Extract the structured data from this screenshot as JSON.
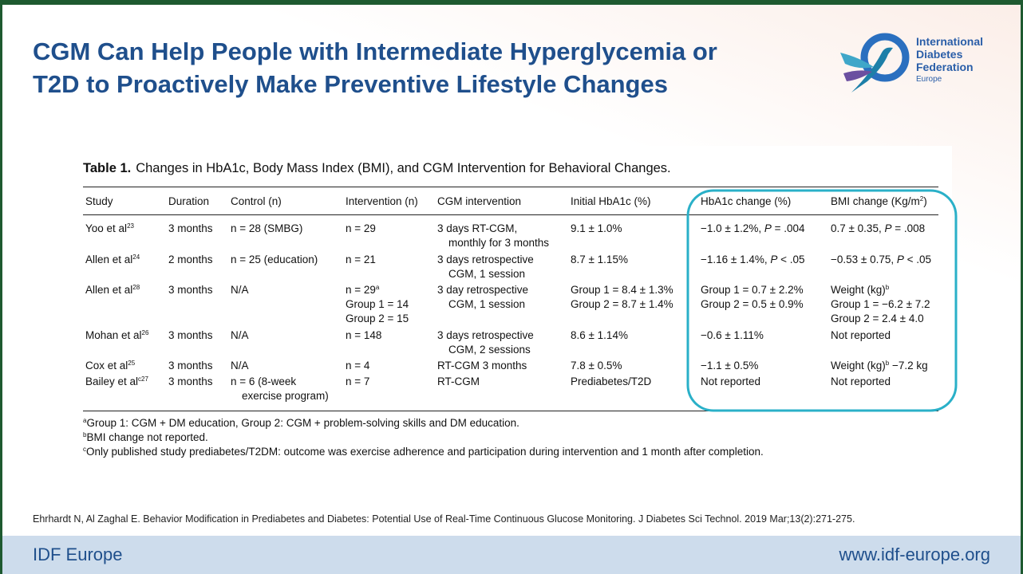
{
  "header": {
    "title": [
      "CGM Can Help People with Intermediate Hyperglycemia or",
      "T2D to Proactively Make Preventive Lifestyle Changes"
    ],
    "logo": [
      "International",
      "Diabetes",
      "Federation",
      "Europe"
    ]
  },
  "table": {
    "caption_label": "Table 1.",
    "caption": "Changes in HbA1c, Body Mass Index (BMI), and CGM Intervention for Behavioral Changes.",
    "columns": [
      [
        "Study"
      ],
      [
        "Duration"
      ],
      [
        "Control (n)"
      ],
      [
        "Intervention (n)"
      ],
      [
        "CGM intervention"
      ],
      [
        "Initial HbA1c (%)"
      ],
      [
        "HbA1c change (%)"
      ],
      [
        [
          "BMI change (Kg/m",
          {
            "sup": "2"
          },
          ")"
        ]
      ]
    ],
    "rows": [
      [
        [
          [
            "Yoo et al",
            {
              "sup": "23"
            }
          ]
        ],
        [
          "3 months"
        ],
        [
          "n = 28 (SMBG)"
        ],
        [
          "n = 29"
        ],
        [
          "3 days RT-CGM,",
          "monthly for 3 months"
        ],
        [
          "9.1 ± 1.0%"
        ],
        [
          [
            "−1.0 ± 1.2%, ",
            {
              "i": "P"
            },
            " = .004"
          ]
        ],
        [
          [
            "0.7 ± 0.35, ",
            {
              "i": "P"
            },
            " = .008"
          ]
        ]
      ],
      [
        [
          [
            "Allen et al",
            {
              "sup": "24"
            }
          ]
        ],
        [
          "2 months"
        ],
        [
          "n = 25 (education)"
        ],
        [
          "n = 21"
        ],
        [
          "3 days retrospective",
          "CGM, 1 session"
        ],
        [
          "8.7 ± 1.15%"
        ],
        [
          [
            "−1.16 ± 1.4%, ",
            {
              "i": "P"
            },
            " < .05"
          ]
        ],
        [
          [
            "−0.53 ± 0.75, ",
            {
              "i": "P"
            },
            " < .05"
          ]
        ]
      ],
      [
        [
          [
            "Allen et al",
            {
              "sup": "28"
            }
          ]
        ],
        [
          "3 months"
        ],
        [
          "N/A"
        ],
        [
          [
            "n = 29",
            {
              "sup": "a"
            }
          ],
          "Group 1 = 14",
          "Group 2 = 15"
        ],
        [
          "3 day retrospective",
          "CGM, 1 session"
        ],
        [
          "Group 1 = 8.4 ± 1.3%",
          "Group 2 = 8.7 ± 1.4%"
        ],
        [
          "Group 1 = 0.7 ± 2.2%",
          "Group 2 = 0.5 ± 0.9%"
        ],
        [
          [
            "Weight (kg)",
            {
              "sup": "b"
            }
          ],
          "Group 1 = −6.2 ± 7.2",
          "Group 2 = 2.4 ± 4.0"
        ]
      ],
      [
        [
          [
            "Mohan et al",
            {
              "sup": "26"
            }
          ]
        ],
        [
          "3 months"
        ],
        [
          "N/A"
        ],
        [
          "n = 148"
        ],
        [
          "3 days retrospective",
          "CGM, 2 sessions"
        ],
        [
          "8.6 ± 1.14%"
        ],
        [
          "−0.6 ± 1.11%"
        ],
        [
          "Not reported"
        ]
      ],
      [
        [
          [
            "Cox et al",
            {
              "sup": "25"
            }
          ]
        ],
        [
          "3 months"
        ],
        [
          "N/A"
        ],
        [
          "n = 4"
        ],
        [
          "RT-CGM 3 months"
        ],
        [
          "7.8 ± 0.5%"
        ],
        [
          "−1.1 ± 0.5%"
        ],
        [
          [
            "Weight (kg)",
            {
              "sup": "b"
            },
            " −7.2 kg"
          ]
        ]
      ],
      [
        [
          [
            "Bailey et al",
            {
              "sup": "c27"
            }
          ]
        ],
        [
          "3 months"
        ],
        [
          "n = 6 (8-week",
          "exercise program)"
        ],
        [
          "n = 7"
        ],
        [
          "RT-CGM"
        ],
        [
          "Prediabetes/T2D"
        ],
        [
          "Not reported"
        ],
        [
          "Not reported"
        ]
      ]
    ],
    "footnotes": [
      [
        {
          "sup": "a"
        },
        "Group 1: CGM + DM education, Group 2: CGM + problem-solving skills and DM education."
      ],
      [
        {
          "sup": "b"
        },
        "BMI change not reported."
      ],
      [
        {
          "sup": "c"
        },
        "Only published study prediabetes/T2DM: outcome was exercise adherence and participation during intervention and 1 month after completion."
      ]
    ]
  },
  "reference": "Ehrhardt N, Al Zaghal E. Behavior Modification in Prediabetes and Diabetes: Potential Use of Real-Time Continuous Glucose Monitoring. J Diabetes Sci Technol. 2019 Mar;13(2):271-275.",
  "footer": {
    "left": "IDF Europe",
    "right": "www.idf-europe.org"
  }
}
